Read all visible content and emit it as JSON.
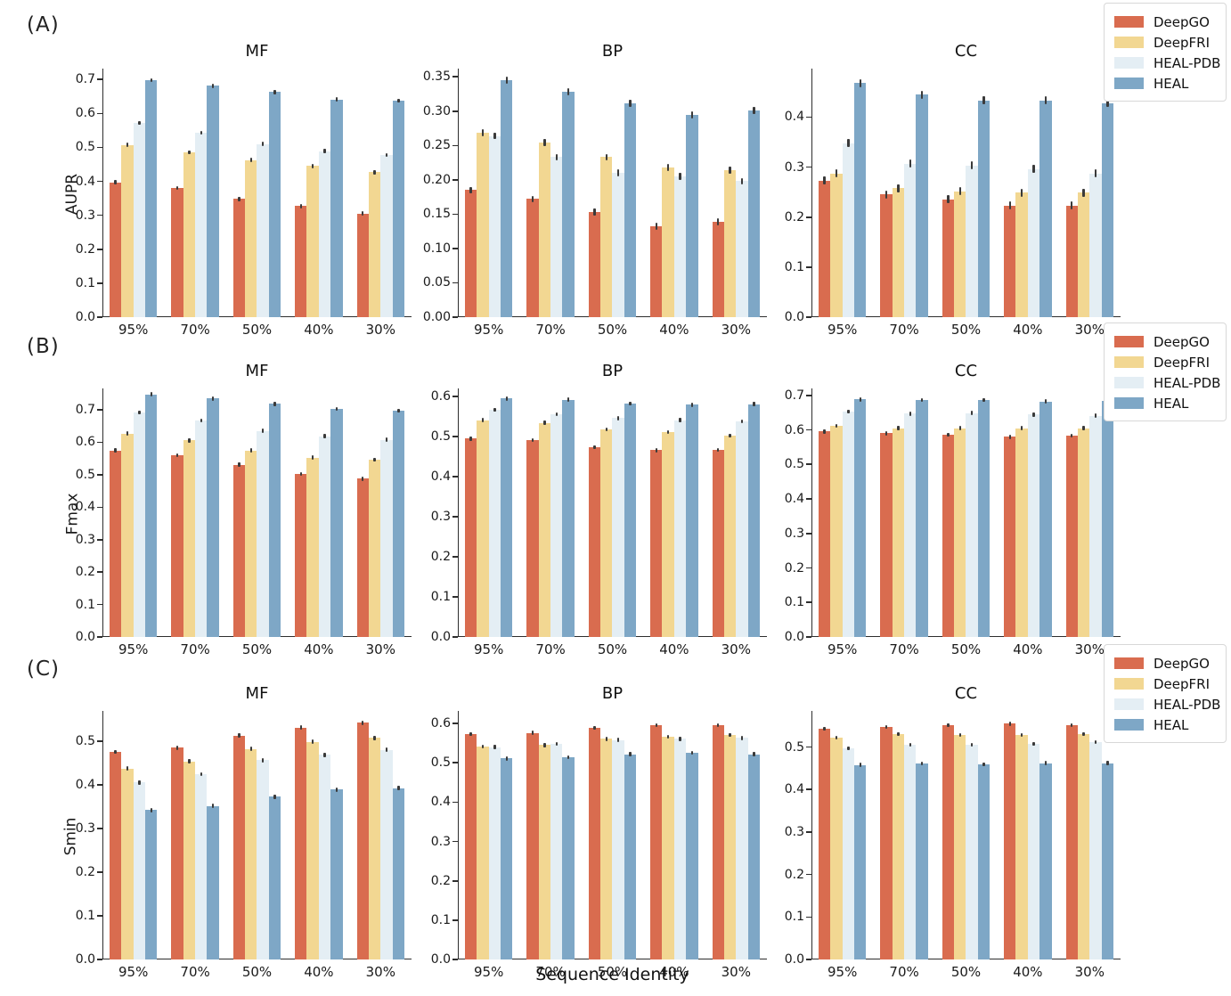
{
  "figure": {
    "background": "#ffffff",
    "x_axis_label": "Sequence Identity",
    "rows": [
      {
        "label": "(A)",
        "metric": "AUPR"
      },
      {
        "label": "(B)",
        "metric": "Fmax"
      },
      {
        "label": "(C)",
        "metric": "Smin"
      }
    ],
    "legend": {
      "position": "top-right-of-each-row",
      "entries": [
        {
          "label": "DeepGO",
          "color": "#d96c4f"
        },
        {
          "label": "DeepFRI",
          "color": "#f2d792"
        },
        {
          "label": "HEAL-PDB",
          "color": "#e4eef4"
        },
        {
          "label": "HEAL",
          "color": "#7ea7c6"
        }
      ]
    }
  },
  "chart_data": [
    {
      "type": "bar",
      "panel": "A",
      "title": "MF",
      "ylabel": "AUPR",
      "categories": [
        "95%",
        "70%",
        "50%",
        "40%",
        "30%"
      ],
      "series": [
        {
          "name": "DeepGO",
          "values": [
            0.397,
            0.381,
            0.348,
            0.327,
            0.305
          ]
        },
        {
          "name": "DeepFRI",
          "values": [
            0.507,
            0.486,
            0.463,
            0.445,
            0.427
          ]
        },
        {
          "name": "HEAL-PDB",
          "values": [
            0.572,
            0.543,
            0.51,
            0.489,
            0.477
          ]
        },
        {
          "name": "HEAL",
          "values": [
            0.698,
            0.681,
            0.663,
            0.641,
            0.638
          ]
        }
      ],
      "yticks": [
        "0.0",
        "0.1",
        "0.2",
        "0.3",
        "0.4",
        "0.5",
        "0.6",
        "0.7"
      ],
      "ylim": [
        0,
        0.732
      ],
      "err": 0.006,
      "error_bars": true,
      "grid": false
    },
    {
      "type": "bar",
      "panel": "A",
      "title": "BP",
      "ylabel": "AUPR",
      "categories": [
        "95%",
        "70%",
        "50%",
        "40%",
        "30%"
      ],
      "series": [
        {
          "name": "DeepGO",
          "values": [
            0.185,
            0.172,
            0.153,
            0.132,
            0.139
          ]
        },
        {
          "name": "DeepFRI",
          "values": [
            0.269,
            0.254,
            0.233,
            0.218,
            0.214
          ]
        },
        {
          "name": "HEAL-PDB",
          "values": [
            0.264,
            0.233,
            0.21,
            0.205,
            0.198
          ]
        },
        {
          "name": "HEAL",
          "values": [
            0.345,
            0.328,
            0.311,
            0.295,
            0.301
          ]
        }
      ],
      "yticks": [
        "0.00",
        "0.05",
        "0.10",
        "0.15",
        "0.20",
        "0.25",
        "0.30",
        "0.35"
      ],
      "ylim": [
        0,
        0.362
      ],
      "err": 0.005,
      "error_bars": true,
      "grid": false
    },
    {
      "type": "bar",
      "panel": "A",
      "title": "CC",
      "ylabel": "AUPR",
      "categories": [
        "95%",
        "70%",
        "50%",
        "40%",
        "30%"
      ],
      "series": [
        {
          "name": "DeepGO",
          "values": [
            0.273,
            0.245,
            0.236,
            0.223,
            0.223
          ]
        },
        {
          "name": "DeepFRI",
          "values": [
            0.287,
            0.258,
            0.252,
            0.249,
            0.249
          ]
        },
        {
          "name": "HEAL-PDB",
          "values": [
            0.348,
            0.307,
            0.303,
            0.296,
            0.287
          ]
        },
        {
          "name": "HEAL",
          "values": [
            0.468,
            0.445,
            0.433,
            0.433,
            0.428
          ]
        }
      ],
      "yticks": [
        "0.0",
        "0.1",
        "0.2",
        "0.3",
        "0.4"
      ],
      "ylim": [
        0,
        0.497
      ],
      "err": 0.008,
      "error_bars": true,
      "grid": false
    },
    {
      "type": "bar",
      "panel": "B",
      "title": "MF",
      "ylabel": "Fmax",
      "categories": [
        "95%",
        "70%",
        "50%",
        "40%",
        "30%"
      ],
      "series": [
        {
          "name": "DeepGO",
          "values": [
            0.575,
            0.56,
            0.531,
            0.503,
            0.488
          ]
        },
        {
          "name": "DeepFRI",
          "values": [
            0.627,
            0.606,
            0.575,
            0.553,
            0.546
          ]
        },
        {
          "name": "HEAL-PDB",
          "values": [
            0.692,
            0.667,
            0.635,
            0.619,
            0.608
          ]
        },
        {
          "name": "HEAL",
          "values": [
            0.748,
            0.735,
            0.718,
            0.703,
            0.698
          ]
        }
      ],
      "yticks": [
        "0.0",
        "0.1",
        "0.2",
        "0.3",
        "0.4",
        "0.5",
        "0.6",
        "0.7"
      ],
      "ylim": [
        0,
        0.766
      ],
      "err": 0.004,
      "error_bars": true,
      "grid": false
    },
    {
      "type": "bar",
      "panel": "B",
      "title": "BP",
      "ylabel": "Fmax",
      "categories": [
        "95%",
        "70%",
        "50%",
        "40%",
        "30%"
      ],
      "series": [
        {
          "name": "DeepGO",
          "values": [
            0.495,
            0.491,
            0.473,
            0.466,
            0.467
          ]
        },
        {
          "name": "DeepFRI",
          "values": [
            0.541,
            0.534,
            0.518,
            0.511,
            0.502
          ]
        },
        {
          "name": "HEAL-PDB",
          "values": [
            0.567,
            0.556,
            0.546,
            0.541,
            0.538
          ]
        },
        {
          "name": "HEAL",
          "values": [
            0.595,
            0.592,
            0.582,
            0.579,
            0.581
          ]
        }
      ],
      "yticks": [
        "0.0",
        "0.1",
        "0.2",
        "0.3",
        "0.4",
        "0.5",
        "0.6"
      ],
      "ylim": [
        0,
        0.62
      ],
      "err": 0.004,
      "error_bars": true,
      "grid": false
    },
    {
      "type": "bar",
      "panel": "B",
      "title": "CC",
      "ylabel": "Fmax",
      "categories": [
        "95%",
        "70%",
        "50%",
        "40%",
        "30%"
      ],
      "series": [
        {
          "name": "DeepGO",
          "values": [
            0.595,
            0.59,
            0.586,
            0.58,
            0.583
          ]
        },
        {
          "name": "DeepFRI",
          "values": [
            0.612,
            0.605,
            0.605,
            0.605,
            0.605
          ]
        },
        {
          "name": "HEAL-PDB",
          "values": [
            0.653,
            0.647,
            0.649,
            0.644,
            0.641
          ]
        },
        {
          "name": "HEAL",
          "values": [
            0.688,
            0.687,
            0.686,
            0.682,
            0.684
          ]
        }
      ],
      "yticks": [
        "0.0",
        "0.1",
        "0.2",
        "0.3",
        "0.4",
        "0.5",
        "0.6",
        "0.7"
      ],
      "ylim": [
        0,
        0.72
      ],
      "err": 0.004,
      "error_bars": true,
      "grid": false
    },
    {
      "type": "bar",
      "panel": "C",
      "title": "MF",
      "ylabel": "Smin",
      "categories": [
        "95%",
        "70%",
        "50%",
        "40%",
        "30%"
      ],
      "series": [
        {
          "name": "DeepGO",
          "values": [
            0.476,
            0.486,
            0.513,
            0.532,
            0.543
          ]
        },
        {
          "name": "DeepFRI",
          "values": [
            0.438,
            0.454,
            0.483,
            0.499,
            0.508
          ]
        },
        {
          "name": "HEAL-PDB",
          "values": [
            0.406,
            0.425,
            0.457,
            0.469,
            0.481
          ]
        },
        {
          "name": "HEAL",
          "values": [
            0.343,
            0.352,
            0.373,
            0.39,
            0.393
          ]
        }
      ],
      "yticks": [
        "0.0",
        "0.1",
        "0.2",
        "0.3",
        "0.4",
        "0.5"
      ],
      "ylim": [
        0,
        0.57
      ],
      "err": 0.005,
      "error_bars": true,
      "grid": false
    },
    {
      "type": "bar",
      "panel": "C",
      "title": "BP",
      "ylabel": "Smin",
      "categories": [
        "95%",
        "70%",
        "50%",
        "40%",
        "30%"
      ],
      "series": [
        {
          "name": "DeepGO",
          "values": [
            0.573,
            0.576,
            0.589,
            0.596,
            0.596
          ]
        },
        {
          "name": "DeepFRI",
          "values": [
            0.541,
            0.545,
            0.561,
            0.566,
            0.571
          ]
        },
        {
          "name": "HEAL-PDB",
          "values": [
            0.54,
            0.548,
            0.558,
            0.561,
            0.563
          ]
        },
        {
          "name": "HEAL",
          "values": [
            0.511,
            0.514,
            0.522,
            0.526,
            0.522
          ]
        }
      ],
      "yticks": [
        "0.0",
        "0.1",
        "0.2",
        "0.3",
        "0.4",
        "0.5",
        "0.6"
      ],
      "ylim": [
        0,
        0.632
      ],
      "err": 0.004,
      "error_bars": true,
      "grid": false
    },
    {
      "type": "bar",
      "panel": "C",
      "title": "CC",
      "ylabel": "Smin",
      "categories": [
        "95%",
        "70%",
        "50%",
        "40%",
        "30%"
      ],
      "series": [
        {
          "name": "DeepGO",
          "values": [
            0.543,
            0.547,
            0.551,
            0.555,
            0.552
          ]
        },
        {
          "name": "DeepFRI",
          "values": [
            0.522,
            0.53,
            0.528,
            0.528,
            0.53
          ]
        },
        {
          "name": "HEAL-PDB",
          "values": [
            0.497,
            0.505,
            0.505,
            0.507,
            0.512
          ]
        },
        {
          "name": "HEAL",
          "values": [
            0.458,
            0.461,
            0.459,
            0.462,
            0.462
          ]
        }
      ],
      "yticks": [
        "0.0",
        "0.1",
        "0.2",
        "0.3",
        "0.4",
        "0.5"
      ],
      "ylim": [
        0,
        0.585
      ],
      "err": 0.004,
      "error_bars": true,
      "grid": false
    }
  ]
}
